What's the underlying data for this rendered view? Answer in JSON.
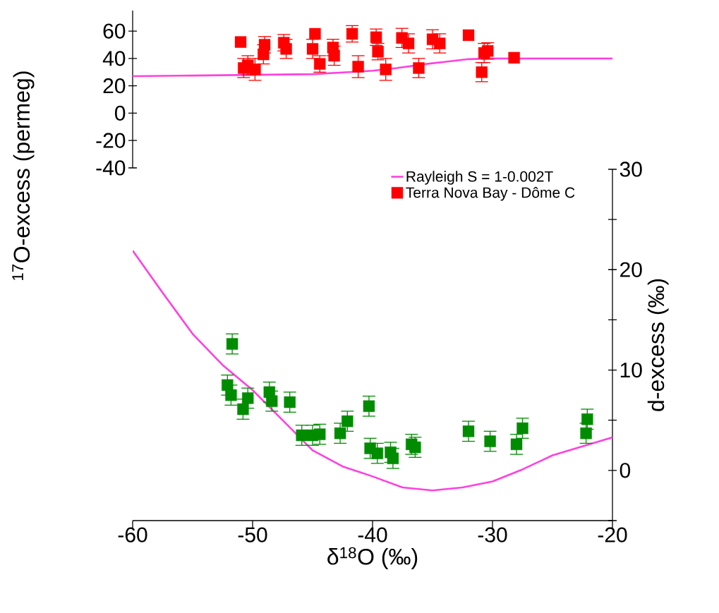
{
  "chart_data": [
    {
      "type": "scatter",
      "ylabel": "$^{17}$O-excess (permeg)",
      "xlim": [
        -60,
        -20
      ],
      "ylim": [
        -40,
        75
      ],
      "yticks": [
        -40,
        -20,
        0,
        20,
        40,
        60
      ],
      "tick_labels": "y",
      "legend": "bottom right",
      "series": [
        {
          "name": "Rayleigh S = 1-0.002T",
          "type": "line",
          "color": "#ff40e0",
          "x": [
            -60,
            -55,
            -50,
            -45,
            -42,
            -40,
            -38,
            -35.5,
            -34,
            -32,
            -30,
            -25,
            -20
          ],
          "values": [
            27,
            27.5,
            28,
            28.5,
            30,
            31,
            33,
            36,
            37.5,
            39.5,
            40,
            40,
            40
          ]
        },
        {
          "name": "Terra Nova Bay - Dôme C",
          "marker": "square",
          "color": "#ff0000",
          "x": [
            -51.0,
            -50.75,
            -50.4,
            -49.8,
            -49.1,
            -49.0,
            -47.4,
            -47.2,
            -44.8,
            -45.0,
            -44.4,
            -43.3,
            -43.2,
            -41.7,
            -41.2,
            -39.7,
            -39.55,
            -38.9,
            -37.55,
            -37.0,
            -36.15,
            -35.0,
            -34.4,
            -32.0,
            -30.7,
            -30.4,
            -30.9,
            -28.2
          ],
          "values": [
            52,
            33,
            35,
            32,
            43,
            50,
            51.5,
            47,
            58,
            47,
            36,
            48,
            42,
            58,
            34,
            55.5,
            45,
            32,
            55,
            51,
            33,
            54,
            51,
            57,
            44,
            45.5,
            30,
            40.5
          ],
          "errors": [
            null,
            7,
            7,
            8,
            7,
            6,
            6,
            7,
            null,
            7,
            6,
            6,
            7,
            6,
            8,
            6,
            6,
            8,
            7,
            7,
            7,
            7,
            7,
            null,
            7,
            6,
            7,
            null
          ]
        }
      ]
    },
    {
      "type": "scatter",
      "xlabel": "δ$^{18}$O (‰)",
      "ylabel": "d-excess (‰)",
      "xlim": [
        -60,
        -20
      ],
      "xticks": [
        -60,
        -50,
        -40,
        -30,
        -20
      ],
      "ylim": [
        -5,
        30
      ],
      "yticks": [
        {
          "value": -5,
          "label": null
        },
        0,
        {
          "value": 5,
          "label": null
        },
        10,
        {
          "value": 15,
          "label": null
        },
        20,
        {
          "value": 25,
          "label": null
        },
        30
      ],
      "series": [
        {
          "type": "line",
          "color": "#ff40e0",
          "x": [
            -60,
            -57.5,
            -55,
            -52.5,
            -50,
            -47.5,
            -45,
            -42.5,
            -40,
            -37.5,
            -35,
            -32.5,
            -30,
            -27.5,
            -25,
            -22.5,
            -20
          ],
          "values": [
            21.9,
            17.7,
            13.6,
            10.5,
            8.0,
            5.0,
            2.0,
            0.4,
            -0.6,
            -1.7,
            -2.0,
            -1.7,
            -1.1,
            0.1,
            1.5,
            2.4,
            3.3
          ]
        },
        {
          "marker": "square",
          "color": "#008c00",
          "x": [
            -52.1,
            -51.8,
            -51.7,
            -50.8,
            -50.4,
            -48.6,
            -48.4,
            -47.0,
            -46.9,
            -45.9,
            -45.0,
            -44.4,
            -42.7,
            -42.1,
            -40.3,
            -40.2,
            -39.6,
            -38.5,
            -38.3,
            -36.75,
            -36.45,
            -32.0,
            -30.2,
            -28.0,
            -27.5,
            -22.2,
            -22.1
          ],
          "values": [
            8.5,
            7.5,
            12.6,
            6.1,
            7.2,
            7.8,
            6.9,
            null,
            6.8,
            3.5,
            3.5,
            3.6,
            3.7,
            4.9,
            6.4,
            2.2,
            1.7,
            1.8,
            1.2,
            2.6,
            2.3,
            3.9,
            2.9,
            2.6,
            4.2,
            3.7,
            5.1
          ],
          "errors": [
            1,
            1,
            1,
            1,
            1,
            1,
            1,
            null,
            1,
            1,
            1,
            1,
            1,
            1,
            1,
            1,
            1,
            1,
            1,
            1,
            1,
            1,
            1,
            1,
            1,
            1,
            1
          ]
        }
      ]
    }
  ]
}
